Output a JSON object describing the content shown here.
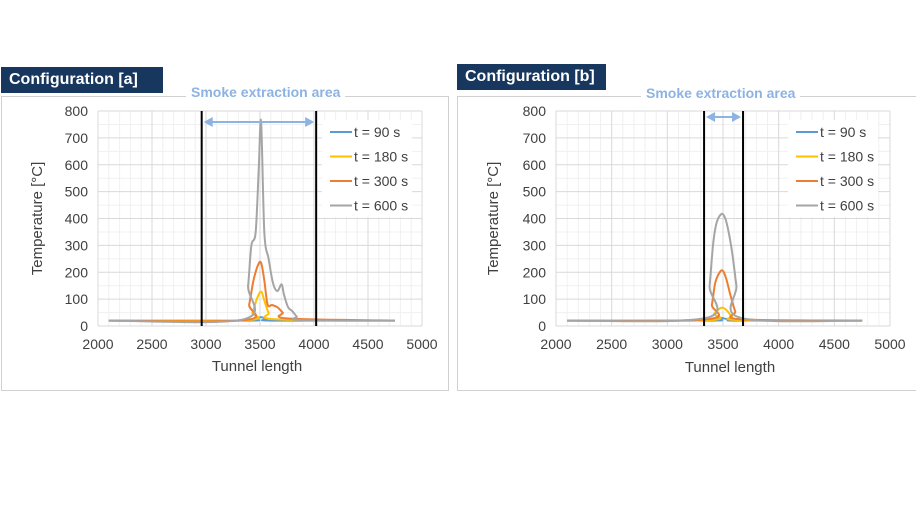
{
  "colors": {
    "t90": "#5b9bd5",
    "t180": "#ffc000",
    "t300": "#ed7d31",
    "t600": "#a5a5a5",
    "title_bg": "#17375e",
    "smoke_arrow": "#8db3e2"
  },
  "panels": [
    {
      "title": "Configuration [a]",
      "smoke_label": "Smoke extraction area"
    },
    {
      "title": "Configuration [b]",
      "smoke_label": "Smoke extraction area"
    }
  ],
  "chart_data": [
    {
      "type": "line",
      "title": "Configuration [a]",
      "annotation": "Smoke extraction area",
      "xlabel": "Tunnel  length",
      "ylabel": "Temperature  [°C]",
      "xlim": [
        2000,
        5000
      ],
      "ylim": [
        0,
        800
      ],
      "xticks": [
        2000,
        2500,
        3000,
        3500,
        4000,
        4500,
        5000
      ],
      "yticks": [
        0,
        100,
        200,
        300,
        400,
        500,
        600,
        700,
        800
      ],
      "grid": true,
      "legend_position": "top-right",
      "extraction_boundaries": [
        2960,
        4020
      ],
      "series": [
        {
          "name": "t = 90 s",
          "color_key": "t90",
          "x": [
            2100,
            3380,
            3450,
            3510,
            3560,
            3620,
            4750
          ],
          "y": [
            20,
            20,
            24,
            33,
            25,
            20,
            20
          ]
        },
        {
          "name": "t = 180 s",
          "color_key": "t180",
          "x": [
            2100,
            3380,
            3430,
            3470,
            3510,
            3540,
            3580,
            3640,
            4750
          ],
          "y": [
            20,
            22,
            50,
            100,
            128,
            95,
            50,
            25,
            20
          ]
        },
        {
          "name": "t = 300 s",
          "color_key": "t300",
          "x": [
            2100,
            3360,
            3400,
            3440,
            3480,
            3510,
            3540,
            3570,
            3610,
            3660,
            3710,
            3760,
            4750
          ],
          "y": [
            20,
            22,
            80,
            170,
            225,
            235,
            170,
            80,
            78,
            70,
            50,
            28,
            20
          ]
        },
        {
          "name": "t = 600 s",
          "color_key": "t600",
          "x": [
            2100,
            3350,
            3390,
            3420,
            3460,
            3490,
            3510,
            3540,
            3580,
            3620,
            3660,
            3700,
            3720,
            3760,
            3800,
            3840,
            3880,
            4750
          ],
          "y": [
            20,
            25,
            150,
            300,
            350,
            600,
            760,
            350,
            250,
            160,
            130,
            155,
            120,
            70,
            55,
            35,
            22,
            20
          ]
        }
      ]
    },
    {
      "type": "line",
      "title": "Configuration [b]",
      "annotation": "Smoke extraction area",
      "xlabel": "Tunnel  length",
      "ylabel": "Temperature  [°C]",
      "xlim": [
        2000,
        5000
      ],
      "ylim": [
        0,
        800
      ],
      "xticks": [
        2000,
        2500,
        3000,
        3500,
        4000,
        4500,
        5000
      ],
      "yticks": [
        0,
        100,
        200,
        300,
        400,
        500,
        600,
        700,
        800
      ],
      "grid": true,
      "legend_position": "top-right",
      "extraction_boundaries": [
        3330,
        3680
      ],
      "series": [
        {
          "name": "t = 90 s",
          "color_key": "t90",
          "x": [
            2100,
            3380,
            3440,
            3480,
            3520,
            3580,
            3640,
            4750
          ],
          "y": [
            20,
            20,
            25,
            30,
            27,
            22,
            20,
            20
          ]
        },
        {
          "name": "t = 180 s",
          "color_key": "t180",
          "x": [
            2100,
            3370,
            3420,
            3460,
            3500,
            3540,
            3580,
            3640,
            4750
          ],
          "y": [
            20,
            22,
            45,
            62,
            68,
            55,
            35,
            22,
            20
          ]
        },
        {
          "name": "t = 300 s",
          "color_key": "t300",
          "x": [
            2100,
            3360,
            3400,
            3430,
            3470,
            3500,
            3530,
            3570,
            3610,
            3660,
            4750
          ],
          "y": [
            20,
            25,
            80,
            160,
            200,
            205,
            175,
            110,
            55,
            25,
            20
          ]
        },
        {
          "name": "t = 600 s",
          "color_key": "t600",
          "x": [
            2100,
            3350,
            3380,
            3410,
            3440,
            3480,
            3510,
            3540,
            3580,
            3620,
            3660,
            4750
          ],
          "y": [
            20,
            30,
            150,
            300,
            380,
            415,
            410,
            370,
            280,
            150,
            30,
            20
          ]
        }
      ]
    }
  ]
}
